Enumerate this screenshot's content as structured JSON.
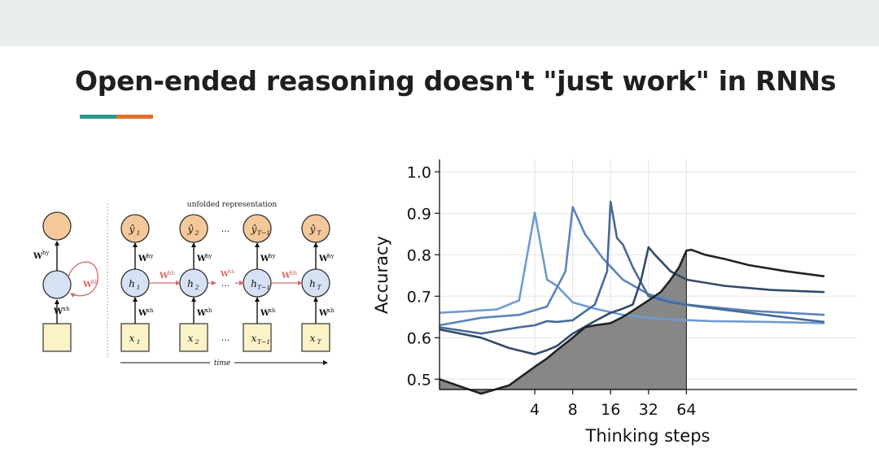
{
  "slide": {
    "title": "Open-ended reasoning doesn't \"just work\" in RNNs",
    "accent_colors": [
      "#2a9a8c",
      "#e0702a"
    ]
  },
  "rnn_diagram": {
    "caption": "unfolded representation",
    "time_label": "time",
    "weight_labels": {
      "output": "W",
      "output_sup": "hy",
      "recurrent": "W",
      "recurrent_sup": "hh",
      "input": "W",
      "input_sup": "xh"
    },
    "ellipsis": "...",
    "steps": [
      {
        "y": "ŷ",
        "y_sub": "1",
        "h": "h",
        "h_sub": "1",
        "x": "x",
        "x_sub": "1"
      },
      {
        "y": "ŷ",
        "y_sub": "2",
        "h": "h",
        "h_sub": "2",
        "x": "x",
        "x_sub": "2"
      },
      {
        "y": "ŷ",
        "y_sub": "T−1",
        "h": "h",
        "h_sub": "T−1",
        "x": "x",
        "x_sub": "T−1"
      },
      {
        "y": "ŷ",
        "y_sub": "T",
        "h": "h",
        "h_sub": "T",
        "x": "x",
        "x_sub": "T"
      }
    ]
  },
  "chart_data": {
    "type": "line",
    "xlabel": "Thinking steps",
    "ylabel": "Accuracy",
    "x_scale": "log2",
    "x_ticks": [
      4,
      8,
      16,
      32,
      64
    ],
    "x_tick_labels": [
      "4",
      "8",
      "16",
      "32",
      "64"
    ],
    "xlim": [
      0.7,
      1450
    ],
    "ylim": [
      0.475,
      1.03
    ],
    "y_ticks": [
      0.5,
      0.6,
      0.7,
      0.8,
      0.9,
      1.0
    ],
    "y_tick_labels": [
      "0.5",
      "0.6",
      "0.7",
      "0.8",
      "0.9",
      "1.0"
    ],
    "grid": true,
    "series": [
      {
        "color": "#6f9bd0",
        "points": [
          [
            0.7,
            0.66
          ],
          [
            2,
            0.668
          ],
          [
            3,
            0.69
          ],
          [
            4,
            0.902
          ],
          [
            5,
            0.74
          ],
          [
            6,
            0.725
          ],
          [
            8,
            0.685
          ],
          [
            12,
            0.67
          ],
          [
            20,
            0.655
          ],
          [
            40,
            0.645
          ],
          [
            100,
            0.64
          ],
          [
            300,
            0.638
          ],
          [
            800,
            0.635
          ]
        ]
      },
      {
        "color": "#5b84bb",
        "points": [
          [
            0.7,
            0.63
          ],
          [
            1.5,
            0.648
          ],
          [
            3,
            0.655
          ],
          [
            5,
            0.675
          ],
          [
            7,
            0.76
          ],
          [
            8,
            0.915
          ],
          [
            10,
            0.85
          ],
          [
            14,
            0.79
          ],
          [
            20,
            0.74
          ],
          [
            32,
            0.705
          ],
          [
            64,
            0.68
          ],
          [
            200,
            0.665
          ],
          [
            800,
            0.655
          ]
        ]
      },
      {
        "color": "#476a98",
        "points": [
          [
            0.7,
            0.625
          ],
          [
            1.5,
            0.61
          ],
          [
            3,
            0.625
          ],
          [
            4,
            0.63
          ],
          [
            5,
            0.64
          ],
          [
            6,
            0.638
          ],
          [
            8,
            0.642
          ],
          [
            12,
            0.68
          ],
          [
            15,
            0.76
          ],
          [
            16,
            0.928
          ],
          [
            18,
            0.84
          ],
          [
            20,
            0.825
          ],
          [
            24,
            0.77
          ],
          [
            32,
            0.7
          ],
          [
            48,
            0.685
          ],
          [
            80,
            0.675
          ],
          [
            200,
            0.66
          ],
          [
            500,
            0.645
          ],
          [
            800,
            0.638
          ]
        ]
      },
      {
        "color": "#334a6a",
        "points": [
          [
            0.7,
            0.62
          ],
          [
            1.5,
            0.6
          ],
          [
            2.5,
            0.575
          ],
          [
            4,
            0.56
          ],
          [
            5,
            0.57
          ],
          [
            6,
            0.58
          ],
          [
            8,
            0.61
          ],
          [
            12,
            0.64
          ],
          [
            16,
            0.66
          ],
          [
            20,
            0.67
          ],
          [
            24,
            0.68
          ],
          [
            28,
            0.74
          ],
          [
            32,
            0.818
          ],
          [
            36,
            0.8
          ],
          [
            48,
            0.76
          ],
          [
            64,
            0.74
          ],
          [
            128,
            0.725
          ],
          [
            300,
            0.715
          ],
          [
            800,
            0.71
          ]
        ]
      },
      {
        "color": "#1f2329",
        "area": true,
        "points": [
          [
            0.7,
            0.5
          ],
          [
            1.5,
            0.465
          ],
          [
            2.5,
            0.485
          ],
          [
            4,
            0.53
          ],
          [
            5,
            0.55
          ],
          [
            6,
            0.57
          ],
          [
            8,
            0.6
          ],
          [
            10,
            0.625
          ],
          [
            12,
            0.63
          ],
          [
            16,
            0.635
          ],
          [
            20,
            0.65
          ],
          [
            24,
            0.665
          ],
          [
            32,
            0.69
          ],
          [
            40,
            0.71
          ],
          [
            48,
            0.74
          ],
          [
            56,
            0.77
          ],
          [
            64,
            0.81
          ],
          [
            70,
            0.812
          ],
          [
            90,
            0.8
          ],
          [
            128,
            0.79
          ],
          [
            200,
            0.775
          ],
          [
            400,
            0.76
          ],
          [
            800,
            0.748
          ]
        ]
      }
    ]
  }
}
